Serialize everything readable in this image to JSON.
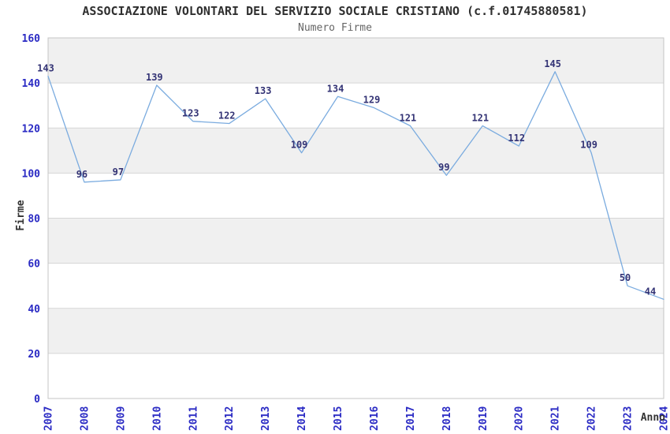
{
  "chart_data": {
    "type": "line",
    "title": "ASSOCIAZIONE VOLONTARI DEL SERVIZIO SOCIALE CRISTIANO (c.f.01745880581)",
    "subtitle": "Numero Firme",
    "xlabel": "Anno",
    "ylabel": "Firme",
    "x": [
      "2007",
      "2008",
      "2009",
      "2010",
      "2011",
      "2012",
      "2013",
      "2014",
      "2015",
      "2016",
      "2017",
      "2018",
      "2019",
      "2020",
      "2021",
      "2022",
      "2023",
      "2024"
    ],
    "values": [
      143,
      96,
      97,
      139,
      123,
      122,
      133,
      109,
      134,
      129,
      121,
      99,
      121,
      112,
      145,
      109,
      50,
      44
    ],
    "ylim": [
      0,
      160
    ],
    "ytick_step": 20,
    "grid": true,
    "legend": false,
    "banded_background": true,
    "colors": {
      "line": "#7aabdf",
      "data_label": "#333375",
      "tick_label": "#2b2bc4",
      "band_gray": "#f0f0f0",
      "band_white": "#ffffff",
      "gridline": "#d6d6d6",
      "plot_border": "#c4c4c4",
      "title": "#2f2f2f",
      "subtitle": "#666666",
      "axis_title": "#333333"
    }
  }
}
